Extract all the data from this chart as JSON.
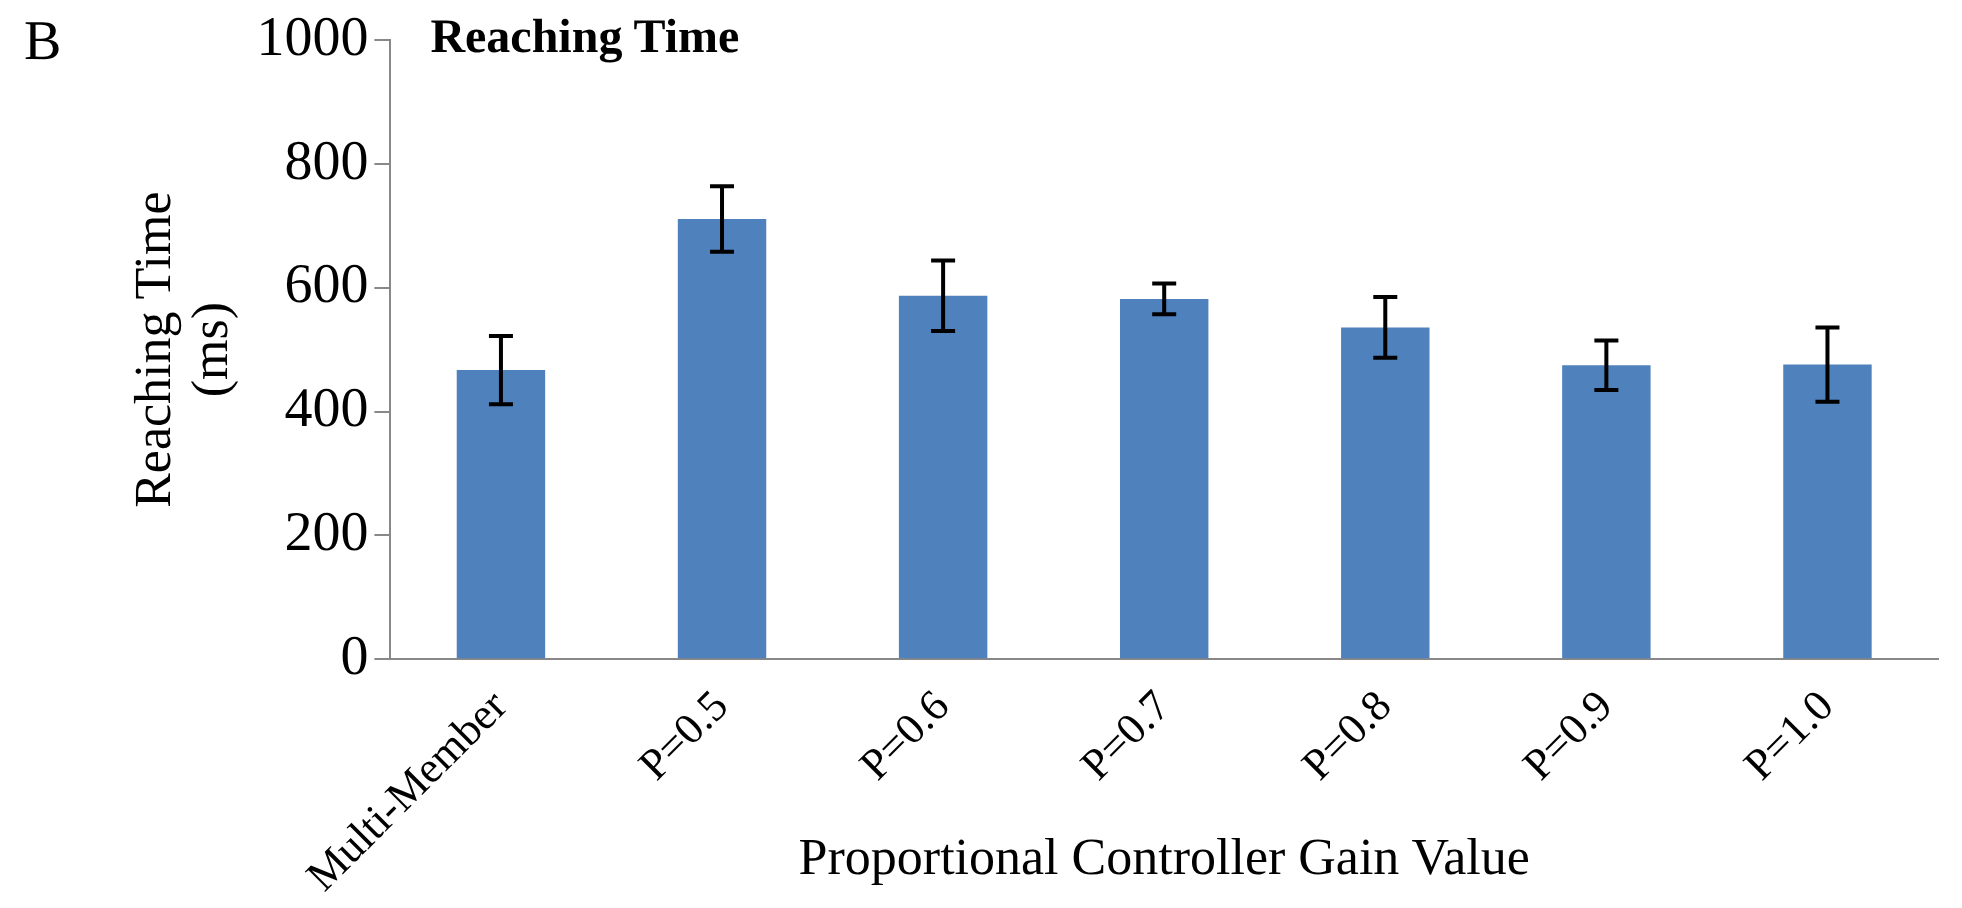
{
  "chart_data": {
    "type": "bar",
    "title": "Reaching Time",
    "xlabel": "Proportional Controller Gain Value",
    "ylabel": "Reaching Time (ms)",
    "annotations": [
      "B"
    ],
    "categories": [
      "Multi-Member",
      "P=0.5",
      "P=0.6",
      "P=0.7",
      "P=0.8",
      "P=0.9",
      "P=1.0"
    ],
    "values": [
      467,
      711,
      587,
      582,
      536,
      475,
      476
    ],
    "errors": [
      55,
      53,
      57,
      25,
      49,
      40,
      60
    ],
    "color": "#4f81bd",
    "ylim": [
      0,
      1000
    ],
    "yticks": [
      0,
      200,
      400,
      600,
      800,
      1000
    ],
    "grid": false,
    "legend": false
  }
}
